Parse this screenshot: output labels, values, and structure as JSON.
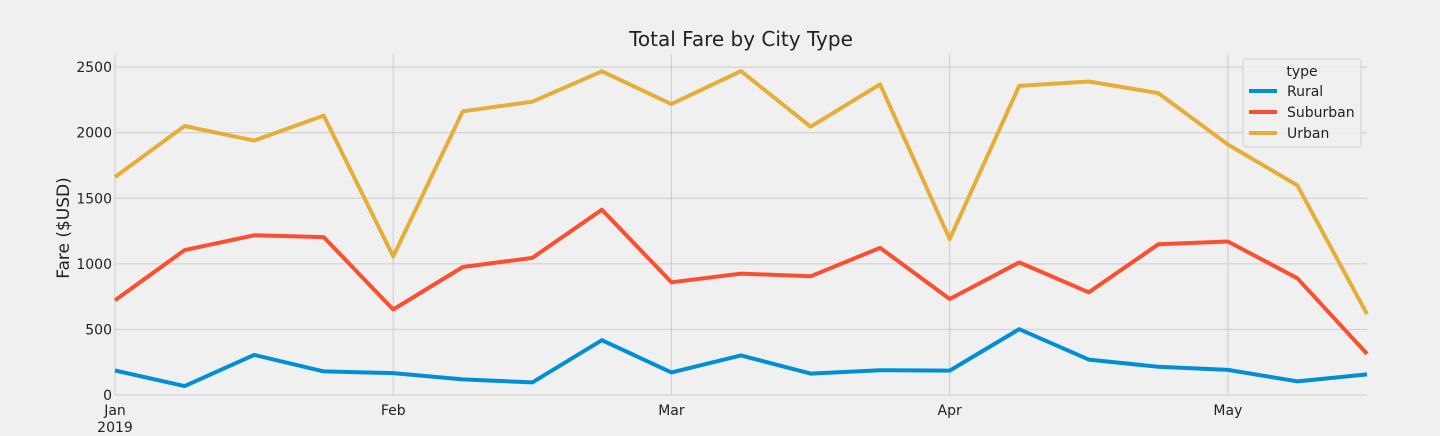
{
  "chart_data": {
    "type": "line",
    "title": "Total Fare by City Type",
    "xlabel": "",
    "ylabel": "Fare ($USD)",
    "x": [
      "2019-01-06",
      "2019-01-13",
      "2019-01-20",
      "2019-01-27",
      "2019-02-03",
      "2019-02-10",
      "2019-02-17",
      "2019-02-24",
      "2019-03-03",
      "2019-03-10",
      "2019-03-17",
      "2019-03-24",
      "2019-03-31",
      "2019-04-07",
      "2019-04-14",
      "2019-04-21",
      "2019-04-28",
      "2019-05-05",
      "2019-05-12"
    ],
    "xlim": [
      "2019-01-06",
      "2019-05-12"
    ],
    "ylim": [
      0,
      2600
    ],
    "x_ticks": [
      {
        "date": "2019-01-06",
        "label": "Jan",
        "sublabel": "2019"
      },
      {
        "date": "2019-02-03",
        "label": "Feb",
        "sublabel": ""
      },
      {
        "date": "2019-03-03",
        "label": "Mar",
        "sublabel": ""
      },
      {
        "date": "2019-03-31",
        "label": "Apr",
        "sublabel": ""
      },
      {
        "date": "2019-04-28",
        "label": "May",
        "sublabel": ""
      }
    ],
    "y_ticks": [
      0,
      500,
      1000,
      1500,
      2000,
      2500
    ],
    "grid": true,
    "legend": {
      "title": "type",
      "placement": "top-right"
    },
    "series": [
      {
        "name": "Rural",
        "color": "#008fd5",
        "values": [
          187,
          68,
          306,
          180,
          167,
          119,
          96,
          418,
          172,
          302,
          163,
          189,
          186,
          502,
          270,
          215,
          191,
          104,
          157
        ]
      },
      {
        "name": "Suburban",
        "color": "#fc4f30",
        "values": [
          722,
          1105,
          1218,
          1204,
          652,
          976,
          1045,
          1413,
          859,
          926,
          905,
          1122,
          732,
          1011,
          783,
          1149,
          1170,
          890,
          313
        ]
      },
      {
        "name": "Urban",
        "color": "#e5ae38",
        "values": [
          1662,
          2051,
          1940,
          2130,
          1057,
          2163,
          2236,
          2468,
          2218,
          2470,
          2046,
          2369,
          1189,
          2357,
          2390,
          2302,
          1910,
          1598,
          617
        ]
      }
    ]
  }
}
